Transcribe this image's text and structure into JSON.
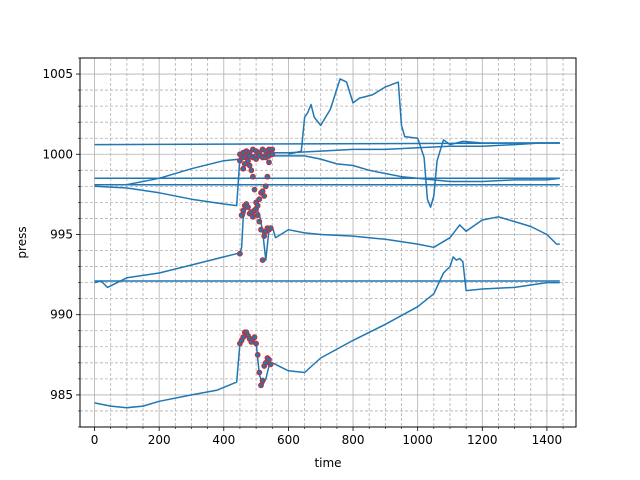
{
  "chart_data": {
    "type": "line",
    "title": "",
    "xlabel": "time",
    "ylabel": "press",
    "xlim": [
      -45,
      1490
    ],
    "ylim": [
      983,
      1006
    ],
    "x_major_ticks": [
      0,
      200,
      400,
      600,
      800,
      1000,
      1200,
      1400
    ],
    "x_minor_step": 50,
    "y_major_ticks": [
      985,
      990,
      995,
      1000,
      1005
    ],
    "y_minor_step": 1,
    "grid": "major solid, minor dashed",
    "line_color": "#1f77b4",
    "marker_face_color": "#1f77b4",
    "marker_edge_color": "#d62728",
    "series": [
      {
        "x": [
          0,
          1440
        ],
        "y": [
          1000.6,
          1000.7
        ]
      },
      {
        "x": [
          0,
          1440
        ],
        "y": [
          998.5,
          998.5
        ]
      },
      {
        "x": [
          0,
          1440
        ],
        "y": [
          998.1,
          998.1
        ]
      },
      {
        "x": [
          0,
          1440
        ],
        "y": [
          992.1,
          992.1
        ]
      },
      {
        "x": [
          0,
          100,
          200,
          300,
          400,
          440,
          450,
          470,
          500,
          530,
          560,
          600,
          700,
          800,
          900,
          1000,
          1100,
          1200,
          1300,
          1380,
          1440
        ],
        "y": [
          998.0,
          997.9,
          997.6,
          997.2,
          996.9,
          996.8,
          999.8,
          999.9,
          1000.0,
          1000.0,
          1000.1,
          1000.1,
          1000.2,
          1000.3,
          1000.3,
          1000.4,
          1000.5,
          1000.5,
          1000.6,
          1000.7,
          1000.7
        ]
      },
      {
        "x": [
          0,
          100,
          200,
          300,
          400,
          450,
          470,
          500,
          560,
          600,
          650,
          700,
          750,
          800,
          850,
          900,
          950,
          1000,
          1050,
          1100,
          1150,
          1200,
          1300,
          1400,
          1440
        ],
        "y": [
          998.1,
          998.1,
          998.5,
          999.1,
          999.6,
          999.7,
          999.8,
          999.9,
          999.9,
          999.9,
          999.9,
          999.7,
          999.4,
          999.3,
          999.0,
          998.8,
          998.6,
          998.5,
          998.4,
          998.3,
          998.3,
          998.3,
          998.4,
          998.4,
          998.5
        ]
      },
      {
        "x": [
          0,
          20,
          40,
          100,
          200,
          300,
          400,
          440,
          450,
          455,
          460,
          465,
          470,
          480,
          490,
          500,
          510,
          520,
          530,
          540,
          550,
          560,
          600,
          650,
          700,
          800,
          900,
          1000,
          1050,
          1100,
          1130,
          1150,
          1200,
          1250,
          1300,
          1350,
          1400,
          1430,
          1440
        ],
        "y": [
          992.0,
          992.1,
          991.7,
          992.3,
          992.6,
          993.1,
          993.6,
          993.8,
          993.8,
          994.2,
          996.0,
          996.3,
          996.8,
          996.5,
          996.1,
          996.6,
          996.3,
          995.2,
          993.4,
          995.3,
          995.5,
          994.8,
          995.3,
          995.1,
          995.0,
          994.9,
          994.7,
          994.4,
          994.2,
          994.8,
          995.6,
          995.2,
          995.9,
          996.1,
          995.8,
          995.5,
          995.0,
          994.4,
          994.4
        ]
      },
      {
        "x": [
          0,
          50,
          100,
          150,
          200,
          300,
          380,
          440,
          450,
          460,
          470,
          480,
          490,
          500,
          510,
          520,
          530,
          540,
          550,
          600,
          650,
          700,
          800,
          900,
          1000,
          1050,
          1080,
          1100,
          1110,
          1120,
          1130,
          1140,
          1150,
          1200,
          1300,
          1400,
          1440
        ],
        "y": [
          984.5,
          984.3,
          984.2,
          984.3,
          984.6,
          985.0,
          985.3,
          985.8,
          988.2,
          988.5,
          988.9,
          988.6,
          988.2,
          988.3,
          986.3,
          985.6,
          986.0,
          986.8,
          987.0,
          986.5,
          986.4,
          987.3,
          988.4,
          989.4,
          990.5,
          991.3,
          992.6,
          993.0,
          993.6,
          993.4,
          993.5,
          993.3,
          991.5,
          991.6,
          991.7,
          992.0,
          992.0
        ]
      },
      {
        "x": [
          600,
          620,
          640,
          650,
          660,
          670,
          680,
          700,
          730,
          760,
          780,
          800,
          820,
          860,
          900,
          940,
          950,
          960,
          1000,
          1020,
          1030,
          1040,
          1050,
          1060,
          1080,
          1100,
          1140,
          1200,
          1300,
          1440
        ],
        "y": [
          1000.0,
          1000.1,
          1000.2,
          1002.3,
          1002.6,
          1003.1,
          1002.3,
          1001.8,
          1002.8,
          1004.7,
          1004.5,
          1003.2,
          1003.5,
          1003.7,
          1004.2,
          1004.5,
          1001.8,
          1001.1,
          1001.0,
          999.8,
          997.2,
          996.7,
          997.4,
          999.6,
          1000.9,
          1000.6,
          1000.8,
          1000.7,
          1000.7,
          1000.7
        ]
      }
    ],
    "marked_points": [
      {
        "x": [
          450,
          455,
          460,
          465,
          470,
          475,
          480,
          485,
          490,
          495,
          500,
          505,
          510,
          515,
          520,
          525,
          530,
          535,
          540,
          545
        ],
        "y": [
          993.8,
          996.2,
          996.5,
          996.8,
          996.9,
          996.7,
          996.3,
          996.4,
          996.1,
          996.5,
          996.6,
          996.2,
          995.8,
          995.3,
          993.4,
          994.9,
          995.2,
          995.4,
          995.3,
          995.4
        ]
      },
      {
        "x": [
          450,
          455,
          460,
          465,
          470,
          475,
          480,
          485,
          490,
          495,
          500,
          505,
          510,
          515,
          520,
          525,
          530,
          535,
          540,
          545
        ],
        "y": [
          988.2,
          988.4,
          988.6,
          988.9,
          988.9,
          988.7,
          988.5,
          988.3,
          988.5,
          988.6,
          988.2,
          987.5,
          986.4,
          985.6,
          985.9,
          986.8,
          987.0,
          987.3,
          987.2,
          986.9
        ]
      },
      {
        "x": [
          450,
          455,
          460,
          465,
          470,
          475,
          480,
          485,
          490,
          495,
          500,
          505,
          510,
          515,
          520,
          525,
          530,
          535,
          540,
          545
        ],
        "y": [
          999.6,
          999.9,
          999.1,
          999.4,
          999.8,
          999.6,
          999.3,
          999.0,
          998.6,
          997.8,
          997.0,
          996.8,
          997.2,
          997.6,
          997.7,
          997.4,
          998.0,
          998.6,
          999.5,
          1000.1
        ]
      },
      {
        "x": [
          450,
          460,
          470,
          480,
          490,
          500,
          510,
          520,
          530,
          540,
          550,
          460,
          470,
          480,
          490,
          500,
          510,
          520,
          530,
          540,
          550
        ],
        "y": [
          1000.0,
          1000.1,
          1000.2,
          1000.1,
          1000.3,
          1000.2,
          1000.1,
          1000.3,
          1000.2,
          1000.3,
          1000.3,
          999.8,
          999.9,
          999.9,
          999.8,
          999.7,
          999.9,
          999.8,
          999.8,
          999.9,
          1000.0
        ]
      }
    ]
  }
}
